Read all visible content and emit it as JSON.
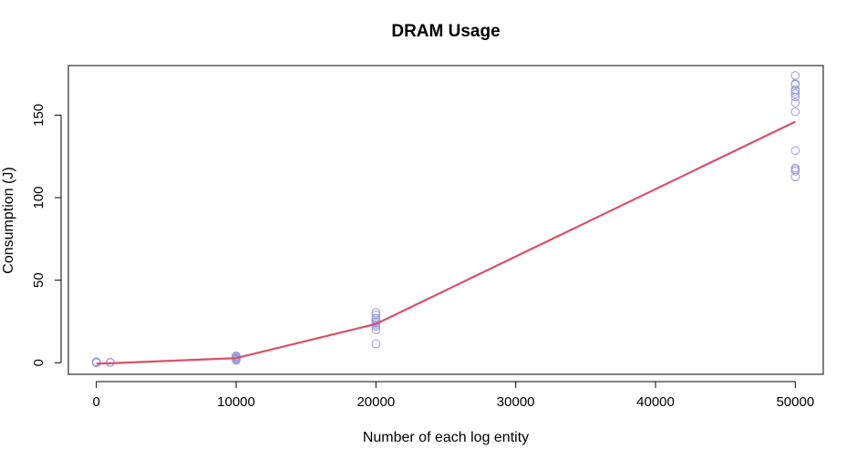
{
  "chart_data": {
    "type": "scatter",
    "title": "DRAM Usage",
    "xlabel": "Number of each log entity",
    "ylabel": "Consumption (J)",
    "xlim": [
      -2000,
      52000
    ],
    "ylim": [
      -7,
      180
    ],
    "xticks": [
      0,
      10000,
      20000,
      30000,
      40000,
      50000
    ],
    "xtick_labels": [
      "0",
      "10000",
      "20000",
      "30000",
      "40000",
      "50000"
    ],
    "yticks": [
      0,
      50,
      100,
      150
    ],
    "ytick_labels": [
      "0",
      "50",
      "100",
      "150"
    ],
    "grid": false,
    "legend": "none",
    "series": [
      {
        "kind": "points",
        "marker": "open-circle",
        "color": "#9A9ADF",
        "points": [
          [
            0,
            0.2
          ],
          [
            0,
            0.4
          ],
          [
            0,
            0.1
          ],
          [
            0,
            0.3
          ],
          [
            0,
            0.5
          ],
          [
            0,
            0.0
          ],
          [
            0,
            0.2
          ],
          [
            0,
            0.6
          ],
          [
            1000,
            0.1
          ],
          [
            1000,
            0.3
          ],
          [
            1000,
            0.2
          ],
          [
            10000,
            1.5
          ],
          [
            10000,
            2.5
          ],
          [
            10000,
            3.0
          ],
          [
            10000,
            3.8
          ],
          [
            10000,
            4.2
          ],
          [
            10000,
            2.0
          ],
          [
            10000,
            3.2
          ],
          [
            10000,
            1.8
          ],
          [
            20000,
            11.5
          ],
          [
            20000,
            20.0
          ],
          [
            20000,
            22.0
          ],
          [
            20000,
            23.0
          ],
          [
            20000,
            24.0
          ],
          [
            20000,
            25.0
          ],
          [
            20000,
            27.0
          ],
          [
            20000,
            29.0
          ],
          [
            20000,
            30.5
          ],
          [
            20000,
            26.0
          ],
          [
            50000,
            112.5
          ],
          [
            50000,
            116.0
          ],
          [
            50000,
            117.0
          ],
          [
            50000,
            118.0
          ],
          [
            50000,
            128.5
          ],
          [
            50000,
            152.0
          ],
          [
            50000,
            157.5
          ],
          [
            50000,
            161.0
          ],
          [
            50000,
            163.0
          ],
          [
            50000,
            164.5
          ],
          [
            50000,
            165.5
          ],
          [
            50000,
            168.5
          ],
          [
            50000,
            169.0
          ],
          [
            50000,
            174.0
          ]
        ]
      },
      {
        "kind": "line",
        "color": "#D9506A",
        "x": [
          0,
          1000,
          10000,
          20000,
          50000
        ],
        "y": [
          -0.5,
          -0.3,
          2.8,
          23.5,
          146.0
        ]
      }
    ]
  }
}
